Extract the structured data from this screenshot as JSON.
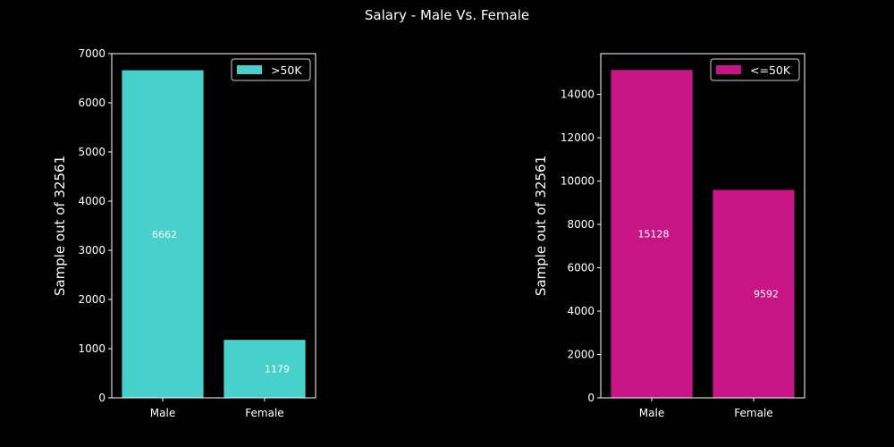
{
  "title": "Salary - Male Vs. Female",
  "colors": {
    "background": "#000000",
    "axis": "#ffffff",
    "text": "#ffffff"
  },
  "chart_data": [
    {
      "type": "bar",
      "categories": [
        "Male",
        "Female"
      ],
      "values": [
        6662,
        1179
      ],
      "value_labels": [
        "6662",
        "1179"
      ],
      "legend_label": ">50K",
      "legend_position": "top-right",
      "ylabel": "Sample out of 32561",
      "xlabel": "",
      "ylim": [
        0,
        7000
      ],
      "yticks": [
        0,
        1000,
        2000,
        3000,
        4000,
        5000,
        6000,
        7000
      ],
      "ytick_labels": [
        "0",
        "1000",
        "2000",
        "3000",
        "4000",
        "5000",
        "6000",
        "7000"
      ],
      "color": "#48d1cc",
      "grid": false
    },
    {
      "type": "bar",
      "categories": [
        "Male",
        "Female"
      ],
      "values": [
        15128,
        9592
      ],
      "value_labels": [
        "15128",
        "9592"
      ],
      "legend_label": "<=50K",
      "legend_position": "top-right",
      "ylabel": "Sample out of 32561",
      "xlabel": "",
      "ylim": [
        0,
        15880
      ],
      "yticks": [
        0,
        2000,
        4000,
        6000,
        8000,
        10000,
        12000,
        14000
      ],
      "ytick_labels": [
        "0",
        "2000",
        "4000",
        "6000",
        "8000",
        "10000",
        "12000",
        "14000"
      ],
      "color": "#c71585",
      "grid": false
    }
  ]
}
